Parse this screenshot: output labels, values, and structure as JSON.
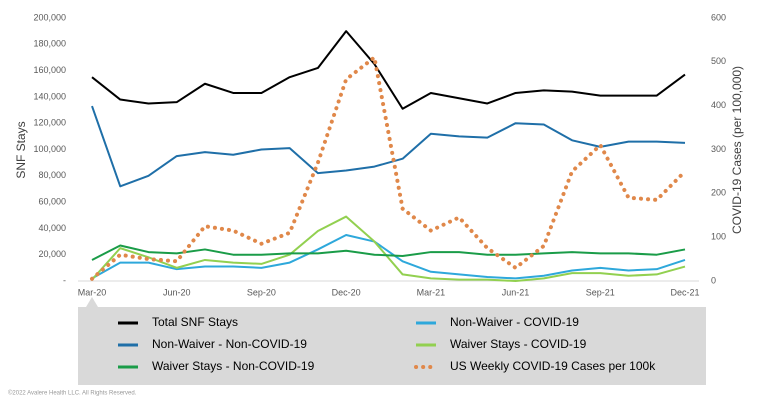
{
  "chart_data": {
    "type": "line",
    "y_label": "SNF Stays",
    "y2_label": "COVID-19 Cases (per 100,000)",
    "categories": [
      "Mar-20",
      null,
      null,
      "Jun-20",
      null,
      null,
      "Sep-20",
      null,
      null,
      "Dec-20",
      null,
      null,
      "Mar-21",
      null,
      null,
      "Jun-21",
      null,
      null,
      "Sep-21",
      null,
      null,
      "Dec-21"
    ],
    "ylim": [
      0,
      200000
    ],
    "yticks": [
      {
        "value": 0,
        "label": "-"
      },
      {
        "value": 20000,
        "label": "20,000"
      },
      {
        "value": 40000,
        "label": "40,000"
      },
      {
        "value": 60000,
        "label": "60,000"
      },
      {
        "value": 80000,
        "label": "80,000"
      },
      {
        "value": 100000,
        "label": "100,000"
      },
      {
        "value": 120000,
        "label": "120,000"
      },
      {
        "value": 140000,
        "label": "140,000"
      },
      {
        "value": 160000,
        "label": "160,000"
      },
      {
        "value": 180000,
        "label": "180,000"
      },
      {
        "value": 200000,
        "label": "200,000"
      }
    ],
    "y2lim": [
      0,
      600
    ],
    "y2ticks": [
      0,
      100,
      200,
      300,
      400,
      500,
      600
    ],
    "series": [
      {
        "name": "Total SNF Stays",
        "color": "#000000",
        "values": [
          155000,
          138000,
          135000,
          136000,
          150000,
          143000,
          143000,
          155000,
          162000,
          190000,
          165000,
          131000,
          143000,
          139000,
          135000,
          143000,
          145000,
          144000,
          141000,
          141000,
          141000,
          157000
        ]
      },
      {
        "name": "Non-Waiver - COVID-19",
        "color": "#2ea8db",
        "values": [
          2000,
          14000,
          14000,
          9000,
          11000,
          11000,
          10000,
          14000,
          24000,
          35000,
          30000,
          15000,
          7000,
          5000,
          3000,
          2000,
          4000,
          8000,
          10000,
          8000,
          9000,
          16000
        ]
      },
      {
        "name": "Non-Waiver - Non-COVID-19",
        "color": "#1f6fa8",
        "values": [
          133000,
          72000,
          80000,
          95000,
          98000,
          96000,
          100000,
          101000,
          82000,
          84000,
          87000,
          93000,
          112000,
          110000,
          109000,
          120000,
          119000,
          107000,
          102000,
          106000,
          106000,
          105000
        ]
      },
      {
        "name": "Waiver Stays - COVID-19",
        "color": "#92d050",
        "values": [
          1000,
          25000,
          18000,
          10000,
          16000,
          14000,
          13000,
          20000,
          38000,
          49000,
          30000,
          5000,
          2000,
          1000,
          1000,
          0,
          2000,
          6000,
          6000,
          4000,
          5000,
          11000
        ]
      },
      {
        "name": "Waiver Stays - Non-COVID-19",
        "color": "#1a9c48",
        "values": [
          16000,
          27000,
          22000,
          21000,
          24000,
          20000,
          20000,
          21000,
          21000,
          23000,
          20000,
          19000,
          22000,
          22000,
          20000,
          20000,
          21000,
          22000,
          21000,
          21000,
          20000,
          24000
        ]
      },
      {
        "name": "US Weekly COVID-19 Cases per 100k",
        "color": "#e0884a",
        "style": "dotted",
        "axis": "y2",
        "values": [
          5,
          60,
          50,
          45,
          125,
          115,
          85,
          110,
          270,
          460,
          510,
          165,
          115,
          145,
          75,
          30,
          80,
          250,
          310,
          190,
          185,
          250
        ]
      }
    ],
    "legend": "bottom",
    "footnote": "©2022 Avalere Health LLC. All Rights Reserved."
  }
}
